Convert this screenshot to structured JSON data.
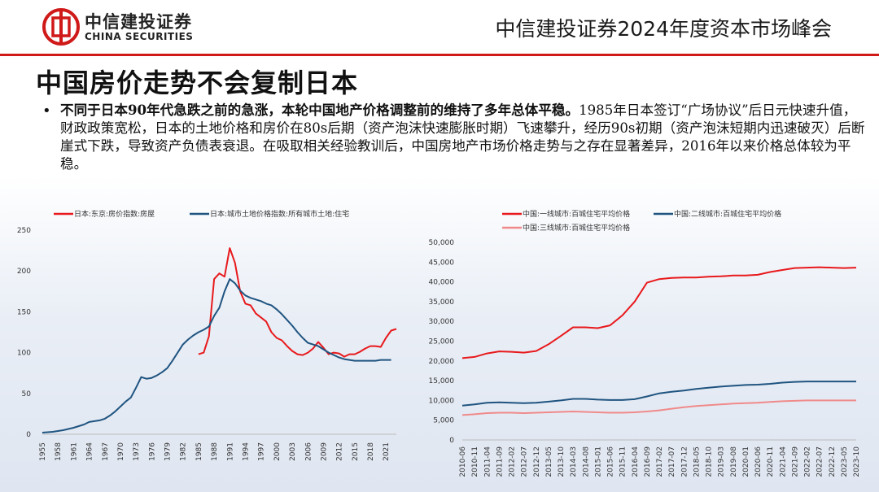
{
  "header": {
    "logo_cn": "中信建投证券",
    "logo_en": "CHINA SECURITIES",
    "conference_title": "中信建投证券2024年度资本市场峰会"
  },
  "page_title": "中国房价走势不会复制日本",
  "bullet": {
    "bold": "不同于日本90年代急跌之前的急涨，本轮中国地产价格调整前的维持了多年总体平稳。",
    "rest": "1985年日本签订“广场协议”后日元快速升值，财政政策宽松，日本的土地价格和房价在80s后期（资产泡沫快速膨胀时期）飞速攀升，经历90s初期（资产泡沫短期内迅速破灭）后断崖式下跌，导致资产负债表衰退。在吸取相关经验教训后，中国房地产市场价格走势与之存在显著差异，2016年以来价格总体较为平稳。"
  },
  "colors": {
    "red": "#e8191c",
    "navy": "#1f5480",
    "pink": "#f08a8a",
    "brand": "#d01a1a"
  },
  "chart_data": [
    {
      "type": "line",
      "title": "",
      "xlabel": "",
      "ylabel": "",
      "xlim": [
        1955,
        2023
      ],
      "ylim": [
        0,
        250
      ],
      "y_ticks": [
        "0",
        "50",
        "100",
        "150",
        "200",
        "250"
      ],
      "x_ticks": [
        "1955",
        "1958",
        "1961",
        "1964",
        "1967",
        "1970",
        "1973",
        "1976",
        "1979",
        "1982",
        "1985",
        "1988",
        "1991",
        "1994",
        "1997",
        "2000",
        "2003",
        "2006",
        "2009",
        "2012",
        "2015",
        "2018",
        "2021"
      ],
      "legend_position": "top",
      "series": [
        {
          "name": "日本:东京:房价指数:房屋",
          "color": "#e8191c",
          "x": [
            1985,
            1986,
            1987,
            1988,
            1989,
            1990,
            1991,
            1992,
            1993,
            1994,
            1995,
            1996,
            1997,
            1998,
            1999,
            2000,
            2001,
            2002,
            2003,
            2004,
            2005,
            2006,
            2007,
            2008,
            2009,
            2010,
            2011,
            2012,
            2013,
            2014,
            2015,
            2016,
            2017,
            2018,
            2019,
            2020,
            2021,
            2022,
            2023
          ],
          "y": [
            98,
            100,
            120,
            190,
            197,
            193,
            228,
            210,
            175,
            160,
            158,
            148,
            143,
            138,
            125,
            118,
            115,
            108,
            102,
            98,
            97,
            100,
            105,
            113,
            106,
            98,
            100,
            99,
            95,
            98,
            98,
            101,
            105,
            108,
            108,
            107,
            118,
            127,
            129
          ]
        },
        {
          "name": "日本:城市土地价格指数:所有城市土地:住宅",
          "color": "#1f5480",
          "x": [
            1955,
            1957,
            1959,
            1961,
            1962,
            1963,
            1964,
            1965,
            1966,
            1967,
            1968,
            1969,
            1970,
            1971,
            1972,
            1973,
            1974,
            1975,
            1976,
            1977,
            1978,
            1979,
            1980,
            1981,
            1982,
            1983,
            1984,
            1985,
            1986,
            1987,
            1988,
            1989,
            1990,
            1991,
            1992,
            1993,
            1994,
            1995,
            1996,
            1997,
            1998,
            1999,
            2000,
            2001,
            2002,
            2003,
            2004,
            2005,
            2006,
            2007,
            2008,
            2009,
            2010,
            2011,
            2012,
            2013,
            2014,
            2015,
            2016,
            2017,
            2018,
            2019,
            2020,
            2021,
            2022
          ],
          "y": [
            2,
            3,
            5,
            8,
            10,
            12,
            15,
            16,
            17,
            19,
            23,
            28,
            34,
            40,
            45,
            57,
            70,
            68,
            69,
            72,
            76,
            81,
            90,
            100,
            110,
            116,
            121,
            125,
            128,
            132,
            145,
            155,
            175,
            190,
            185,
            176,
            170,
            167,
            165,
            163,
            160,
            158,
            153,
            147,
            140,
            133,
            125,
            118,
            112,
            110,
            108,
            104,
            100,
            97,
            94,
            92,
            91,
            90,
            90,
            90,
            90,
            90,
            91,
            91,
            91
          ]
        }
      ]
    },
    {
      "type": "line",
      "title": "",
      "xlabel": "",
      "ylabel": "",
      "ylim": [
        0,
        50000
      ],
      "y_ticks": [
        "0",
        "5,000",
        "10,000",
        "15,000",
        "20,000",
        "25,000",
        "30,000",
        "35,000",
        "40,000",
        "45,000",
        "50,000"
      ],
      "x_ticks": [
        "2010-06",
        "2010-11",
        "2011-04",
        "2011-09",
        "2012-02",
        "2012-07",
        "2012-12",
        "2013-05",
        "2013-10",
        "2014-03",
        "2014-08",
        "2015-01",
        "2015-06",
        "2015-11",
        "2016-04",
        "2016-09",
        "2017-02",
        "2017-07",
        "2017-12",
        "2018-05",
        "2018-10",
        "2019-03",
        "2019-08",
        "2020-01",
        "2020-06",
        "2020-11",
        "2021-04",
        "2021-09",
        "2022-02",
        "2022-07",
        "2022-12",
        "2023-05",
        "2023-10"
      ],
      "legend_position": "top",
      "series": [
        {
          "name": "中国:一线城市:百城住宅平均价格",
          "color": "#e8191c",
          "x": [
            "2010-06",
            "2010-11",
            "2011-04",
            "2011-09",
            "2012-02",
            "2012-07",
            "2012-12",
            "2013-05",
            "2013-10",
            "2014-03",
            "2014-08",
            "2015-01",
            "2015-06",
            "2015-11",
            "2016-04",
            "2016-09",
            "2017-02",
            "2017-07",
            "2017-12",
            "2018-05",
            "2018-10",
            "2019-03",
            "2019-08",
            "2020-01",
            "2020-06",
            "2020-11",
            "2021-04",
            "2021-09",
            "2022-02",
            "2022-07",
            "2022-12",
            "2023-05",
            "2023-10"
          ],
          "y": [
            20700,
            21000,
            21900,
            22400,
            22300,
            22100,
            22500,
            24200,
            26300,
            28500,
            28500,
            28300,
            29000,
            31500,
            35000,
            39800,
            40700,
            41000,
            41100,
            41100,
            41300,
            41400,
            41600,
            41600,
            41800,
            42500,
            43000,
            43500,
            43600,
            43700,
            43600,
            43500,
            43600
          ]
        },
        {
          "name": "中国:二线城市:百城住宅平均价格",
          "color": "#1f5480",
          "x": [
            "2010-06",
            "2010-11",
            "2011-04",
            "2011-09",
            "2012-02",
            "2012-07",
            "2012-12",
            "2013-05",
            "2013-10",
            "2014-03",
            "2014-08",
            "2015-01",
            "2015-06",
            "2015-11",
            "2016-04",
            "2016-09",
            "2017-02",
            "2017-07",
            "2017-12",
            "2018-05",
            "2018-10",
            "2019-03",
            "2019-08",
            "2020-01",
            "2020-06",
            "2020-11",
            "2021-04",
            "2021-09",
            "2022-02",
            "2022-07",
            "2022-12",
            "2023-05",
            "2023-10"
          ],
          "y": [
            8700,
            9000,
            9400,
            9500,
            9400,
            9300,
            9400,
            9700,
            10000,
            10400,
            10400,
            10200,
            10100,
            10100,
            10300,
            11000,
            11800,
            12200,
            12500,
            12900,
            13200,
            13500,
            13700,
            13900,
            14000,
            14200,
            14500,
            14700,
            14800,
            14800,
            14800,
            14800,
            14800
          ]
        },
        {
          "name": "中国:三线城市:百城住宅平均价格",
          "color": "#f08a8a",
          "x": [
            "2010-06",
            "2010-11",
            "2011-04",
            "2011-09",
            "2012-02",
            "2012-07",
            "2012-12",
            "2013-05",
            "2013-10",
            "2014-03",
            "2014-08",
            "2015-01",
            "2015-06",
            "2015-11",
            "2016-04",
            "2016-09",
            "2017-02",
            "2017-07",
            "2017-12",
            "2018-05",
            "2018-10",
            "2019-03",
            "2019-08",
            "2020-01",
            "2020-06",
            "2020-11",
            "2021-04",
            "2021-09",
            "2022-02",
            "2022-07",
            "2022-12",
            "2023-05",
            "2023-10"
          ],
          "y": [
            6300,
            6500,
            6800,
            6900,
            6900,
            6800,
            6900,
            7000,
            7100,
            7200,
            7100,
            7000,
            6900,
            6900,
            7000,
            7200,
            7500,
            7900,
            8300,
            8600,
            8800,
            9000,
            9200,
            9300,
            9400,
            9600,
            9800,
            9900,
            10000,
            10000,
            10000,
            10000,
            10000
          ]
        }
      ]
    }
  ]
}
